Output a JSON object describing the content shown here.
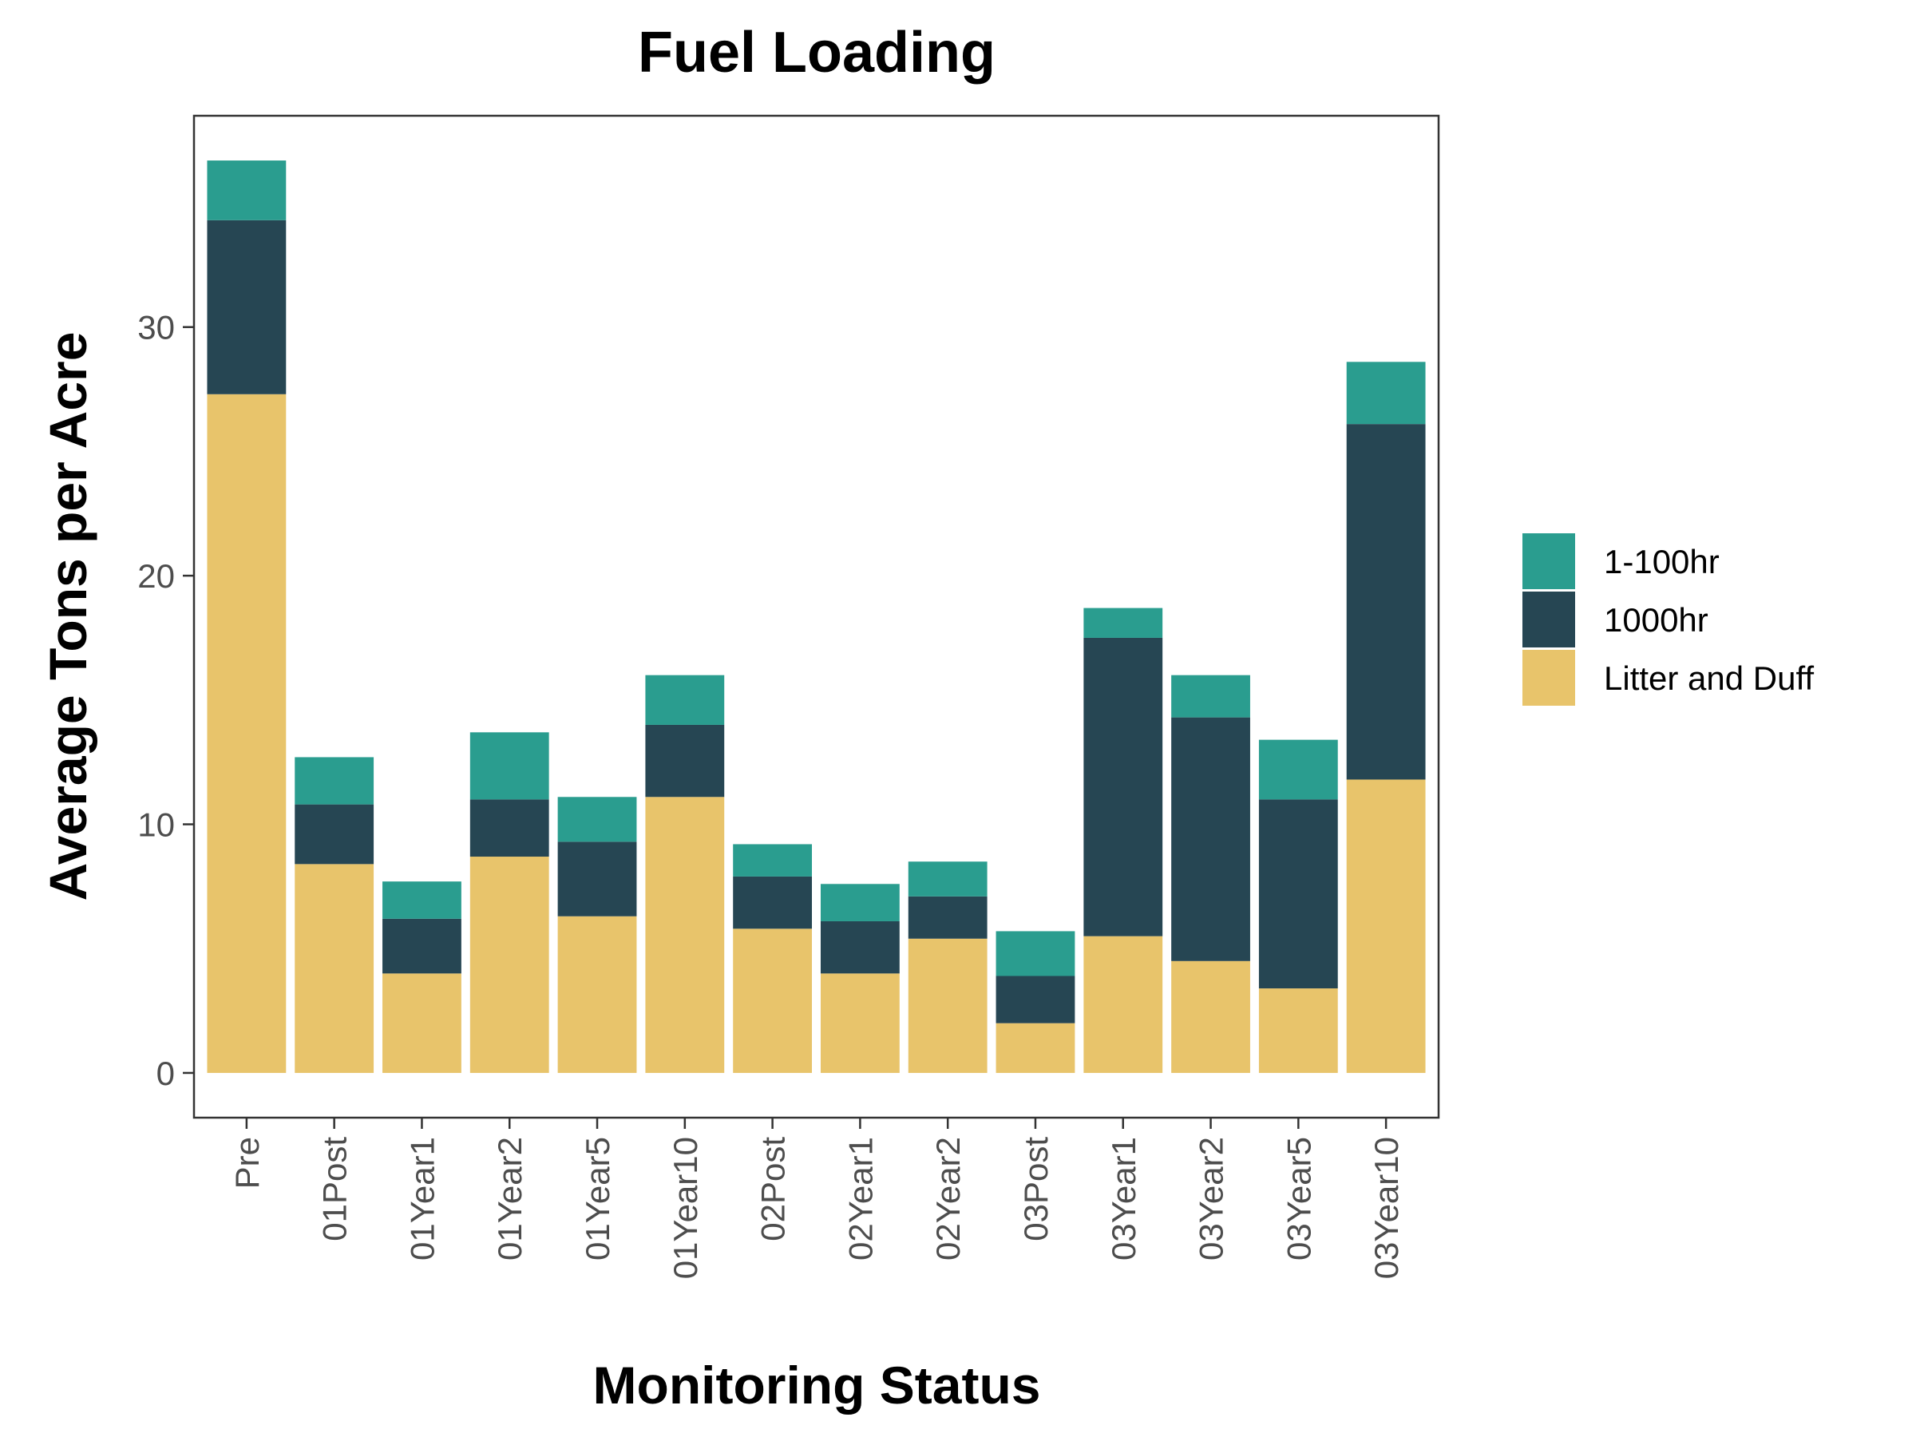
{
  "chart_data": {
    "type": "bar",
    "stacked": true,
    "title": "Fuel Loading",
    "xlabel": "Monitoring Status",
    "ylabel": "Average Tons per Acre",
    "ylim": [
      -1.8,
      38.5
    ],
    "yticks": [
      0,
      10,
      20,
      30
    ],
    "grid": false,
    "legend_position": "right",
    "categories": [
      "Pre",
      "01Post",
      "01Year1",
      "01Year2",
      "01Year5",
      "01Year10",
      "02Post",
      "02Year1",
      "02Year2",
      "03Post",
      "03Year1",
      "03Year2",
      "03Year5",
      "03Year10"
    ],
    "series": [
      {
        "name": "Litter and Duff",
        "color": "#E8C46B",
        "values": [
          27.3,
          8.4,
          4.0,
          8.7,
          6.3,
          11.1,
          5.8,
          4.0,
          5.4,
          2.0,
          5.5,
          4.5,
          3.4,
          11.8
        ]
      },
      {
        "name": "1000hr",
        "color": "#264653",
        "values": [
          7.0,
          2.4,
          2.2,
          2.3,
          3.0,
          2.9,
          2.1,
          2.1,
          1.7,
          1.9,
          12.0,
          9.8,
          7.6,
          14.3
        ]
      },
      {
        "name": "1-100hr",
        "color": "#2A9D8F",
        "values": [
          2.4,
          1.9,
          1.5,
          2.7,
          1.8,
          2.0,
          1.3,
          1.5,
          1.4,
          1.8,
          1.2,
          1.7,
          2.4,
          2.5
        ]
      }
    ],
    "legend_order": [
      "1-100hr",
      "1000hr",
      "Litter and Duff"
    ]
  }
}
